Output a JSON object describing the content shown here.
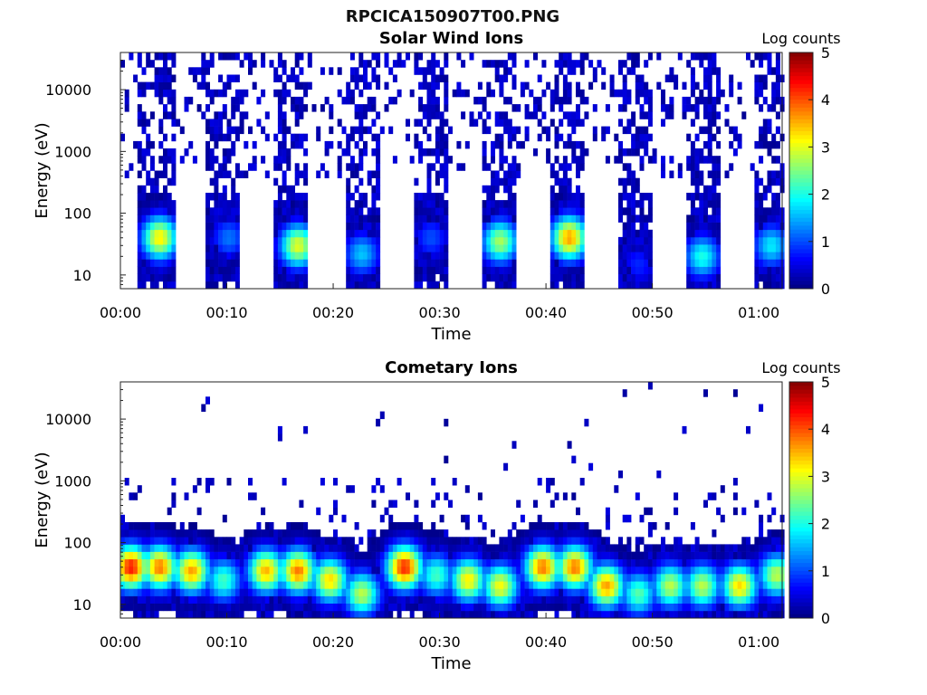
{
  "figure": {
    "title": "RPCICA150907T00.PNG"
  },
  "chart_data": [
    {
      "type": "heatmap",
      "title": "Solar Wind Ions",
      "xlabel": "Time",
      "ylabel": "Energy (eV)",
      "x_ticks": [
        "00:00",
        "00:10",
        "00:20",
        "00:30",
        "00:40",
        "00:50",
        "01:00"
      ],
      "x_tick_minutes": [
        0,
        10,
        20,
        30,
        40,
        50,
        60
      ],
      "xlim_minutes": [
        0,
        62.2
      ],
      "y_scale": "log",
      "ylim": [
        6,
        40000
      ],
      "y_ticks": [
        "10",
        "100",
        "1000",
        "10000"
      ],
      "y_tick_values": [
        10,
        100,
        1000,
        10000
      ],
      "colorbar": {
        "label": "Log counts",
        "range": [
          0,
          5
        ],
        "ticks": [
          "0",
          "1",
          "2",
          "3",
          "4",
          "5"
        ],
        "colormap": "jet"
      },
      "sweeps_start_minutes": [
        1.6,
        8.0,
        14.4,
        20.8,
        27.2,
        33.6,
        40.0,
        46.4,
        52.8,
        59.2
      ],
      "sweep_duration_minutes": 3.2,
      "peaks": [
        {
          "minute": 3.5,
          "energy_ev": 40,
          "log_counts": 3.2
        },
        {
          "minute": 10.0,
          "energy_ev": 40,
          "log_counts": 1.2
        },
        {
          "minute": 16.5,
          "energy_ev": 30,
          "log_counts": 3.0
        },
        {
          "minute": 22.5,
          "energy_ev": 22,
          "log_counts": 1.6
        },
        {
          "minute": 29.0,
          "energy_ev": 40,
          "log_counts": 1.0
        },
        {
          "minute": 35.5,
          "energy_ev": 35,
          "log_counts": 2.7
        },
        {
          "minute": 42.0,
          "energy_ev": 40,
          "log_counts": 3.6
        },
        {
          "minute": 48.5,
          "energy_ev": 15,
          "log_counts": 0.8
        },
        {
          "minute": 54.5,
          "energy_ev": 20,
          "log_counts": 2.0
        },
        {
          "minute": 61.0,
          "energy_ev": 30,
          "log_counts": 1.8
        }
      ]
    },
    {
      "type": "heatmap",
      "title": "Cometary Ions",
      "xlabel": "Time",
      "ylabel": "Energy (eV)",
      "x_ticks": [
        "00:00",
        "00:10",
        "00:20",
        "00:30",
        "00:40",
        "00:50",
        "01:00"
      ],
      "x_tick_minutes": [
        0,
        10,
        20,
        30,
        40,
        50,
        60
      ],
      "xlim_minutes": [
        0,
        62.2
      ],
      "y_scale": "log",
      "ylim": [
        6,
        40000
      ],
      "y_ticks": [
        "10",
        "100",
        "1000",
        "10000"
      ],
      "y_tick_values": [
        10,
        100,
        1000,
        10000
      ],
      "colorbar": {
        "label": "Log counts",
        "range": [
          0,
          5
        ],
        "ticks": [
          "0",
          "1",
          "2",
          "3",
          "4",
          "5"
        ],
        "colormap": "jet"
      },
      "peaks": [
        {
          "minute": 0.8,
          "energy_ev": 40,
          "log_counts": 4.3
        },
        {
          "minute": 3.5,
          "energy_ev": 40,
          "log_counts": 3.8
        },
        {
          "minute": 6.5,
          "energy_ev": 35,
          "log_counts": 3.6
        },
        {
          "minute": 9.5,
          "energy_ev": 25,
          "log_counts": 2.2
        },
        {
          "minute": 13.5,
          "energy_ev": 35,
          "log_counts": 3.5
        },
        {
          "minute": 16.5,
          "energy_ev": 35,
          "log_counts": 3.8
        },
        {
          "minute": 19.5,
          "energy_ev": 25,
          "log_counts": 3.3
        },
        {
          "minute": 22.5,
          "energy_ev": 15,
          "log_counts": 2.8
        },
        {
          "minute": 26.5,
          "energy_ev": 40,
          "log_counts": 4.2
        },
        {
          "minute": 29.5,
          "energy_ev": 30,
          "log_counts": 2.2
        },
        {
          "minute": 32.5,
          "energy_ev": 25,
          "log_counts": 3.2
        },
        {
          "minute": 35.5,
          "energy_ev": 20,
          "log_counts": 3.1
        },
        {
          "minute": 39.5,
          "energy_ev": 40,
          "log_counts": 3.8
        },
        {
          "minute": 42.5,
          "energy_ev": 40,
          "log_counts": 3.8
        },
        {
          "minute": 45.5,
          "energy_ev": 20,
          "log_counts": 3.6
        },
        {
          "minute": 48.5,
          "energy_ev": 15,
          "log_counts": 2.3
        },
        {
          "minute": 51.5,
          "energy_ev": 20,
          "log_counts": 2.8
        },
        {
          "minute": 54.5,
          "energy_ev": 20,
          "log_counts": 2.8
        },
        {
          "minute": 58.0,
          "energy_ev": 20,
          "log_counts": 3.3
        },
        {
          "minute": 61.5,
          "energy_ev": 30,
          "log_counts": 2.8
        }
      ]
    }
  ]
}
